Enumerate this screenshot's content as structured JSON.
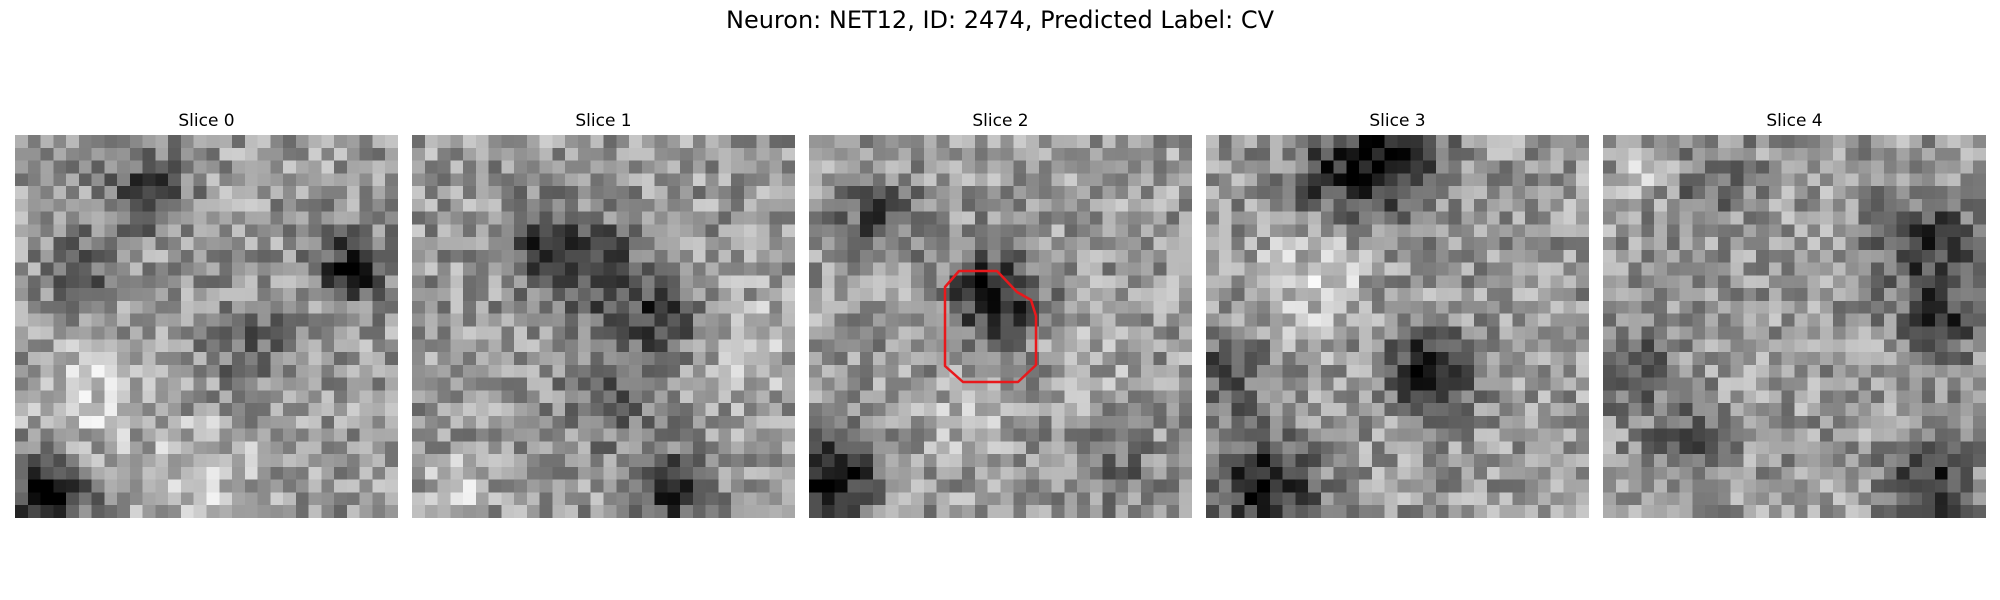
{
  "figure": {
    "suptitle": "Neuron: NET12, ID: 2474, Predicted Label: CV"
  },
  "panels": [
    {
      "title": "Slice 0",
      "has_roi": false
    },
    {
      "title": "Slice 1",
      "has_roi": false
    },
    {
      "title": "Slice 2",
      "has_roi": true
    },
    {
      "title": "Slice 3",
      "has_roi": false
    },
    {
      "title": "Slice 4",
      "has_roi": false
    }
  ],
  "roi": {
    "color": "#e8191c"
  },
  "colormap": "gray"
}
